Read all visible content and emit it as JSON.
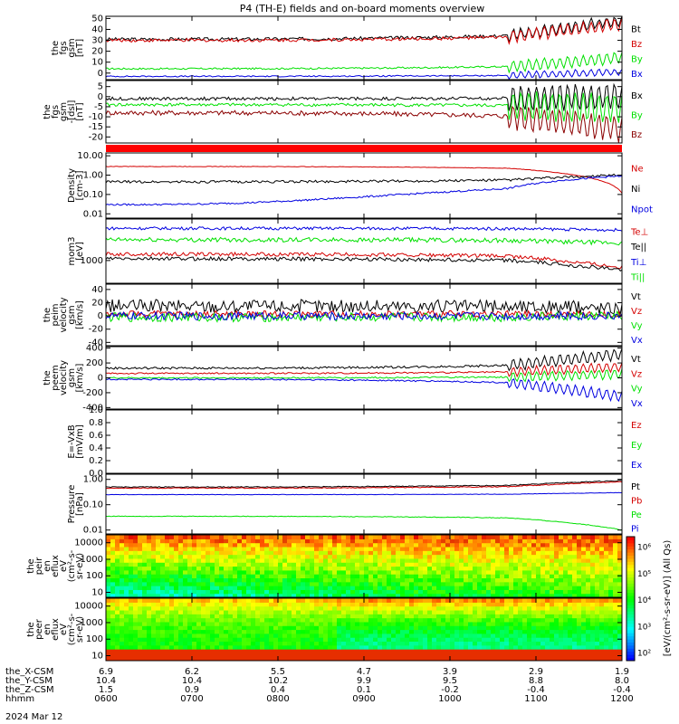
{
  "title": "P4 (TH-E) fields and on-board moments overview",
  "date_label": "2024 Mar 12",
  "colors": {
    "black": "#000000",
    "red": "#d40000",
    "dark_red": "#8b0000",
    "green": "#00e000",
    "blue": "#0000e0"
  },
  "chart_data": [
    {
      "id": "fgs_gsm",
      "type": "line",
      "ylabel": [
        "the",
        "fgs",
        "gsm",
        "[nT]"
      ],
      "yticks": [
        "50",
        "40",
        "30",
        "20",
        "10",
        "0"
      ],
      "ylim": [
        -6,
        52
      ],
      "series": [
        {
          "name": "Bt",
          "color": "#000000",
          "base": 31,
          "end": 48,
          "noise": 1.5,
          "lateNoise": 5
        },
        {
          "name": "Bz",
          "color": "#d40000",
          "base": 30,
          "end": 45,
          "noise": 1.5,
          "lateNoise": 5
        },
        {
          "name": "By",
          "color": "#00e000",
          "base": 4,
          "end": 14,
          "noise": 0.8,
          "lateNoise": 5
        },
        {
          "name": "Bx",
          "color": "#0000e0",
          "base": -3,
          "end": 1,
          "noise": 0.6,
          "lateNoise": 3
        }
      ]
    },
    {
      "id": "fgs_dsl",
      "type": "line",
      "ylabel": [
        "the",
        "fgs",
        "gsm",
        "-[dsl]",
        "[nT]"
      ],
      "yticks": [
        "5",
        "0",
        "-5",
        "-10",
        "-15",
        "-20"
      ],
      "ylim": [
        -23,
        8
      ],
      "series": [
        {
          "name": "Bx",
          "color": "#000000",
          "base": -1,
          "end": 0,
          "noise": 0.8,
          "lateNoise": 6
        },
        {
          "name": "By",
          "color": "#00e000",
          "base": -4,
          "end": -6,
          "noise": 0.8,
          "lateNoise": 7
        },
        {
          "name": "Bz",
          "color": "#8b0000",
          "base": -8,
          "end": -16,
          "noise": 1.2,
          "lateNoise": 6
        }
      ]
    },
    {
      "id": "density",
      "type": "line",
      "log": true,
      "ylabel": [
        "Density",
        "[cm-3]"
      ],
      "yticks": [
        "10.00",
        "1.00",
        "0.10",
        "0.01"
      ],
      "ylim": [
        0.006,
        14
      ],
      "series": [
        {
          "name": "Ne",
          "color": "#d40000",
          "base": 2.8,
          "end": 0.12,
          "noise": 0.03
        },
        {
          "name": "Ni",
          "color": "#000000",
          "base": 0.45,
          "end": 1.0,
          "noise": 0.15
        },
        {
          "name": "Npot",
          "color": "#0000e0",
          "base": 0.03,
          "end": 0.9,
          "noise": 0.1
        }
      ]
    },
    {
      "id": "temperature",
      "type": "line",
      "log": true,
      "ylabel": [
        "mom3",
        "[eV]"
      ],
      "yticks": [
        "1000"
      ],
      "ylim": [
        300,
        9000
      ],
      "series": [
        {
          "name": "Te⊥",
          "color": "#d40000",
          "base": 1400,
          "end": 700,
          "noise": 0.1
        },
        {
          "name": "Te||",
          "color": "#000000",
          "base": 1100,
          "end": 600,
          "noise": 0.1
        },
        {
          "name": "Ti⊥",
          "color": "#0000e0",
          "base": 5500,
          "end": 5000,
          "noise": 0.08
        },
        {
          "name": "Ti||",
          "color": "#00e000",
          "base": 3000,
          "end": 2500,
          "noise": 0.12
        }
      ]
    },
    {
      "id": "peim_velocity",
      "type": "line",
      "ylabel": [
        "the",
        "peim",
        "velocity",
        "gsm",
        "[km/s]"
      ],
      "yticks": [
        "40",
        "20",
        "0",
        "-20",
        "-40"
      ],
      "ylim": [
        -45,
        48
      ],
      "series": [
        {
          "name": "Vt",
          "color": "#000000",
          "base": 15,
          "end": 12,
          "noise": 10
        },
        {
          "name": "Vz",
          "color": "#d40000",
          "base": 3,
          "end": 2,
          "noise": 5
        },
        {
          "name": "Vy",
          "color": "#00e000",
          "base": -2,
          "end": 0,
          "noise": 7
        },
        {
          "name": "Vx",
          "color": "#0000e0",
          "base": 0,
          "end": 0,
          "noise": 6
        }
      ]
    },
    {
      "id": "peem_velocity",
      "type": "line",
      "ylabel": [
        "the",
        "peem",
        "velocity",
        "gsm",
        "[km/s]"
      ],
      "yticks": [
        "400",
        "200",
        "0",
        "-200",
        "-400"
      ],
      "ylim": [
        -420,
        420
      ],
      "series": [
        {
          "name": "Vt",
          "color": "#000000",
          "base": 130,
          "end": 320,
          "noise": 15,
          "lateNoise": 70
        },
        {
          "name": "Vz",
          "color": "#d40000",
          "base": 60,
          "end": 150,
          "noise": 10,
          "lateNoise": 60
        },
        {
          "name": "Vy",
          "color": "#00e000",
          "base": 0,
          "end": 50,
          "noise": 10,
          "lateNoise": 60
        },
        {
          "name": "Vx",
          "color": "#0000e0",
          "base": -20,
          "end": -250,
          "noise": 10,
          "lateNoise": 70
        }
      ]
    },
    {
      "id": "efield",
      "type": "line",
      "ylabel": [
        "E=-VxB",
        "[mV/m]"
      ],
      "yticks": [
        "1.0",
        "0.8",
        "0.6",
        "0.4",
        "0.2",
        "0.0"
      ],
      "ylim": [
        0,
        1
      ],
      "series": [
        {
          "name": "Ez",
          "color": "#d40000"
        },
        {
          "name": "Ey",
          "color": "#00e000"
        },
        {
          "name": "Ex",
          "color": "#0000e0"
        }
      ]
    },
    {
      "id": "pressure",
      "type": "line",
      "log": true,
      "ylabel": [
        "Pressure",
        "[nPa]"
      ],
      "yticks": [
        "1.00",
        "0.10",
        "0.01"
      ],
      "ylim": [
        0.007,
        1.6
      ],
      "series": [
        {
          "name": "Pt",
          "color": "#000000",
          "base": 0.5,
          "end": 0.9,
          "noise": 0.04
        },
        {
          "name": "Pb",
          "color": "#d40000",
          "base": 0.45,
          "end": 0.8,
          "noise": 0.04
        },
        {
          "name": "Pe",
          "color": "#00e000",
          "base": 0.035,
          "end": 0.01,
          "noise": 0.03
        },
        {
          "name": "Pi",
          "color": "#0000e0",
          "base": 0.25,
          "end": 0.3,
          "noise": 0.02
        }
      ]
    },
    {
      "id": "peir_spec",
      "type": "heatmap",
      "ylabel": [
        "the",
        "peir",
        "en",
        "eflux",
        "eV",
        "(cm^2-s-",
        "sr-eV)"
      ],
      "yticks": [
        "10000",
        "1000",
        "100",
        "10"
      ]
    },
    {
      "id": "peer_spec",
      "type": "heatmap",
      "ylabel": [
        "the",
        "peer",
        "en",
        "eflux",
        "eV",
        "(cm^2-s-",
        "sr-eV)"
      ],
      "yticks": [
        "10000",
        "1000",
        "100",
        "10"
      ]
    }
  ],
  "colorbar": {
    "label": "[eV/(cm^2-s-sr-eV)] (All Qs)",
    "ticks": [
      "10^6",
      "10^5",
      "10^4",
      "10^3",
      "10^2"
    ]
  },
  "x_axis": {
    "rows": [
      {
        "label": "the_X-CSM",
        "values": [
          "6.9",
          "6.2",
          "5.5",
          "4.7",
          "3.9",
          "2.9",
          "1.9"
        ]
      },
      {
        "label": "the_Y-CSM",
        "values": [
          "10.4",
          "10.4",
          "10.2",
          "9.9",
          "9.5",
          "8.8",
          "8.0"
        ]
      },
      {
        "label": "the_Z-CSM",
        "values": [
          "1.5",
          "0.9",
          "0.4",
          "0.1",
          "-0.2",
          "-0.4",
          "-0.4"
        ]
      },
      {
        "label": "hhmm",
        "values": [
          "0600",
          "0700",
          "0800",
          "0900",
          "1000",
          "1100",
          "1200"
        ]
      }
    ]
  }
}
